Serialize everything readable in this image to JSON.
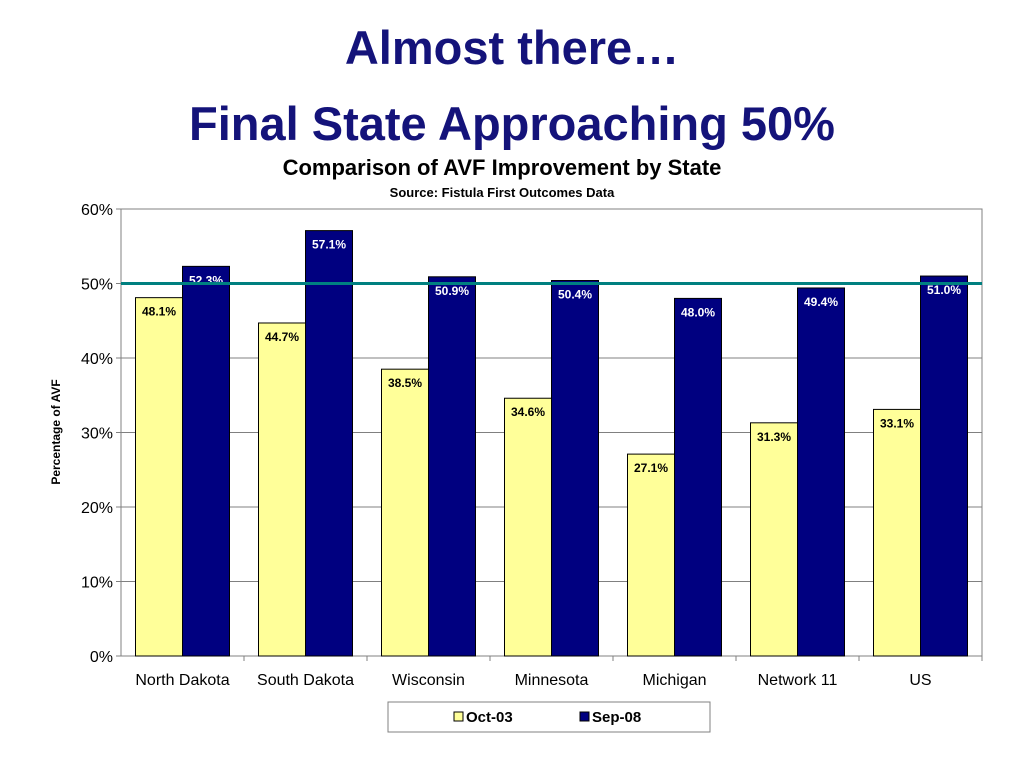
{
  "slide": {
    "title_line1": "Almost there…",
    "title_line2": "Final State Approaching 50%"
  },
  "chart_data": {
    "type": "bar",
    "title": "Comparison of AVF Improvement by State",
    "subtitle": "Source:  Fistula First Outcomes Data",
    "xlabel": "",
    "ylabel": "Percentage of AVF",
    "ylim": [
      0,
      60
    ],
    "yticks": [
      0,
      10,
      20,
      30,
      40,
      50,
      60
    ],
    "ytick_labels": [
      "0%",
      "10%",
      "20%",
      "30%",
      "40%",
      "50%",
      "60%"
    ],
    "grid": true,
    "categories": [
      "North Dakota",
      "South Dakota",
      "Wisconsin",
      "Minnesota",
      "Michigan",
      "Network 11",
      "US"
    ],
    "series": [
      {
        "name": "Oct-03",
        "color": "#ffff99",
        "label_color": "#000000",
        "values": [
          48.1,
          44.7,
          38.5,
          34.6,
          27.1,
          31.3,
          33.1
        ],
        "labels": [
          "48.1%",
          "44.7%",
          "38.5%",
          "34.6%",
          "27.1%",
          "31.3%",
          "33.1%"
        ]
      },
      {
        "name": "Sep-08",
        "color": "#000080",
        "label_color": "#ffffff",
        "values": [
          52.3,
          57.1,
          50.9,
          50.4,
          48.0,
          49.4,
          51.0
        ],
        "labels": [
          "52.3%",
          "57.1%",
          "50.9%",
          "50.4%",
          "48.0%",
          "49.4%",
          "51.0%"
        ]
      }
    ],
    "reference_line": {
      "value": 50,
      "color": "#008080"
    },
    "legend": {
      "position": "bottom"
    }
  }
}
